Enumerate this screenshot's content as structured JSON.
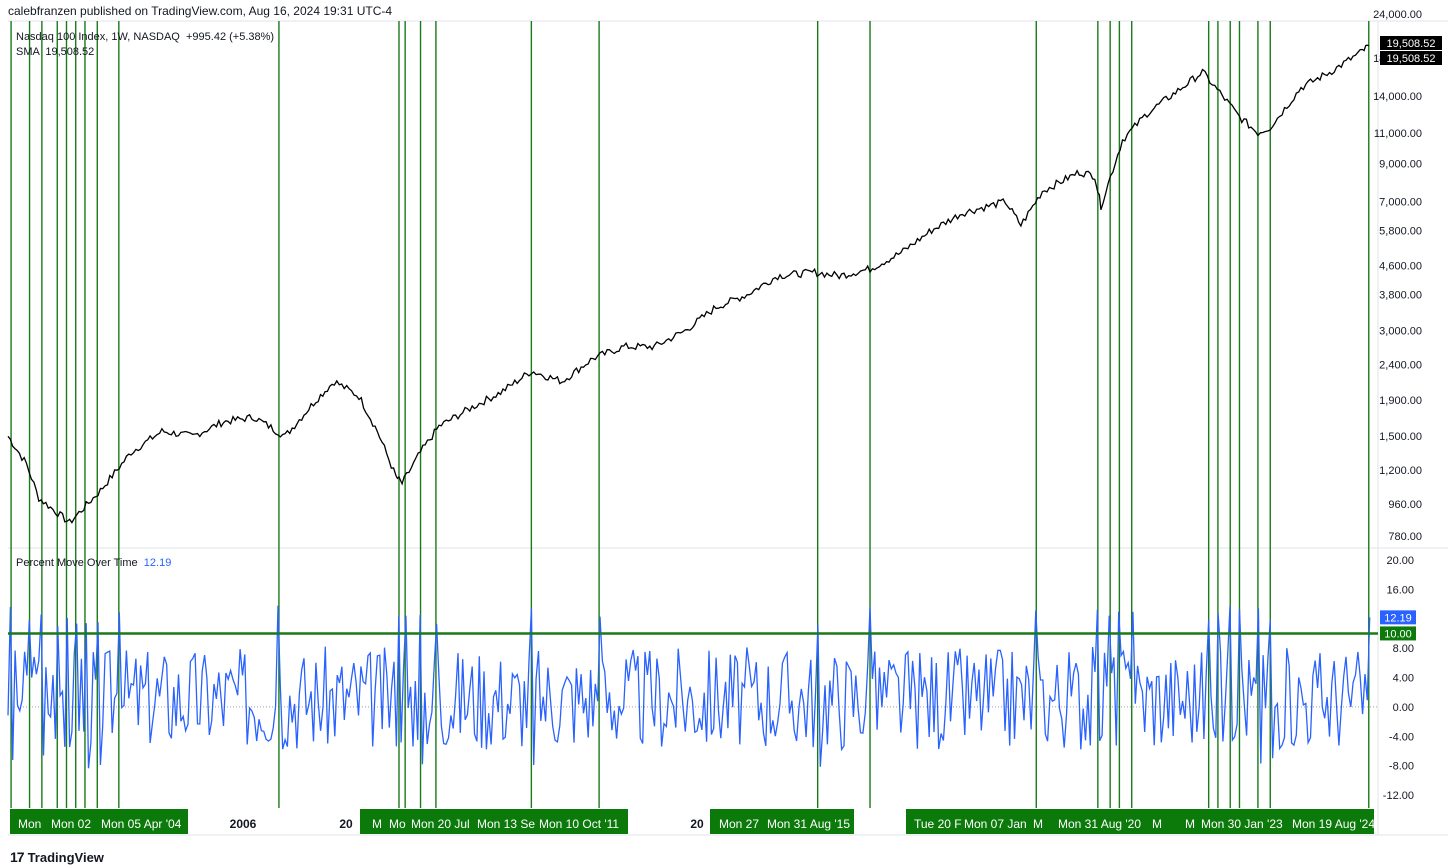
{
  "header": {
    "publish_text": "calebfranzen published on TradingView.com, Aug 16, 2024 19:31 UTC-4"
  },
  "main_legend": {
    "symbol": "Nasdaq 100 Index, 1W, NASDAQ",
    "change": "+995.42 (+5.38%)",
    "sma_label": "SMA",
    "sma_value": "19,508.52"
  },
  "indicator_legend": {
    "name": "Percent Move Over Time",
    "value": "12.19"
  },
  "brand": {
    "logo_glyph": "17",
    "name": "TradingView"
  },
  "colors": {
    "price": "#000000",
    "indicator": "#2962ff",
    "marker": "#1a7a1a",
    "label_bg": "#0b7a0b",
    "threshold": "#1a7a1a"
  },
  "chart_data": [
    {
      "type": "line",
      "title": "Nasdaq 100 Index, 1W, NASDAQ",
      "scale": "log",
      "ylim": [
        720,
        24000
      ],
      "y_ticks": [
        "24,000.00",
        "18,000.00",
        "14,000.00",
        "11,000.00",
        "9,000.00",
        "7,000.00",
        "5,800.00",
        "4,600.00",
        "3,800.00",
        "3,000.00",
        "2,400.00",
        "1,900.00",
        "1,500.00",
        "1,200.00",
        "960.00",
        "780.00"
      ],
      "price_badges": [
        "19,508.52",
        "19,508.52"
      ],
      "series": [
        {
          "name": "Nasdaq 100 Index",
          "x": [
            2002.5,
            2002.8,
            2003.0,
            2003.5,
            2004.0,
            2004.5,
            2005.0,
            2005.5,
            2006.0,
            2006.5,
            2007.0,
            2007.5,
            2007.8,
            2008.2,
            2008.5,
            2008.8,
            2008.9,
            2009.2,
            2009.5,
            2010.0,
            2010.5,
            2011.0,
            2011.5,
            2012.0,
            2012.5,
            2013.0,
            2013.5,
            2014.0,
            2014.5,
            2015.0,
            2015.6,
            2016.0,
            2016.5,
            2017.0,
            2017.5,
            2018.0,
            2018.7,
            2018.95,
            2019.3,
            2019.9,
            2020.15,
            2020.25,
            2020.6,
            2021.0,
            2021.5,
            2021.9,
            2022.3,
            2022.5,
            2022.8,
            2023.0,
            2023.5,
            2024.0,
            2024.5,
            2024.6
          ],
          "values": [
            1500,
            1250,
            1000,
            850,
            1050,
            1350,
            1550,
            1500,
            1650,
            1700,
            1500,
            1900,
            2150,
            1950,
            1550,
            1150,
            1100,
            1350,
            1600,
            1800,
            2000,
            2300,
            2150,
            2500,
            2700,
            2700,
            3000,
            3500,
            3800,
            4300,
            4400,
            4300,
            4500,
            5000,
            5800,
            6500,
            7000,
            6000,
            7500,
            8500,
            8300,
            6800,
            10500,
            12500,
            14500,
            16400,
            13500,
            12200,
            11000,
            11400,
            14800,
            16500,
            18800,
            19508.52
          ]
        }
      ]
    },
    {
      "type": "line",
      "title": "Percent Move Over Time",
      "ylim": [
        -12,
        20
      ],
      "y_ticks": [
        "20.00",
        "16.00",
        "12.00",
        "8.00",
        "4.00",
        "0.00",
        "-4.00",
        "-8.00",
        "-12.00"
      ],
      "value_badges": [
        "12.19",
        "10.00"
      ],
      "threshold": 10,
      "series": [
        {
          "name": "Percent Move Over Time",
          "last_value": 12.19
        }
      ]
    }
  ],
  "time_axis": {
    "year_labels": [
      "2006",
      "20",
      "20"
    ],
    "marker_labels": [
      "Mon",
      "Mon 02",
      "Mon 05 Apr '04",
      "M",
      "Mo",
      "Mon 20 Jul",
      "Mon 13 Se",
      "Mon 10 Oct '11",
      "Mon 27",
      "Mon 31 Aug '15",
      "Tue 20 F",
      "Mon 07 Jan",
      "M",
      "Mon 31 Aug '20",
      "M",
      "M",
      "Mon 30 Jan '23",
      "Mon 19 Aug '24"
    ]
  }
}
